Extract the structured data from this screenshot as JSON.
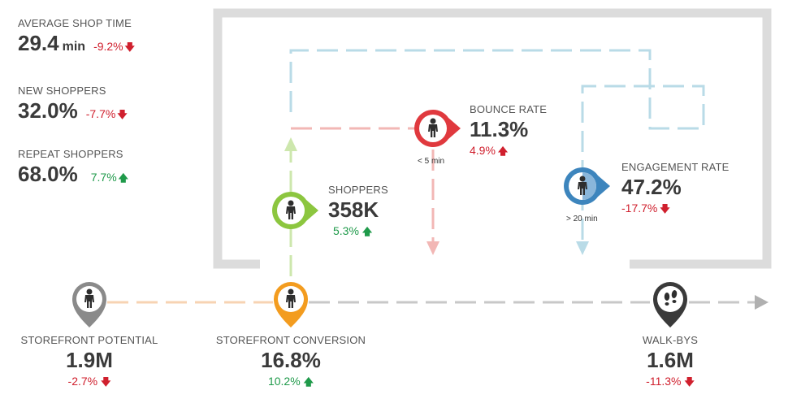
{
  "top_stats": {
    "avg_shop_time": {
      "label": "AVERAGE SHOP TIME",
      "value": "29.4",
      "unit": "min",
      "change": "-9.2%",
      "direction": "down"
    },
    "new_shoppers": {
      "label": "NEW SHOPPERS",
      "value": "32.0%",
      "change": "-7.7%",
      "direction": "down"
    },
    "repeat_shoppers": {
      "label": "REPEAT SHOPPERS",
      "value": "68.0%",
      "change": "7.7%",
      "direction": "up"
    }
  },
  "shoppers": {
    "label": "SHOPPERS",
    "value": "358K",
    "change": "5.3%",
    "direction": "up"
  },
  "bounce_rate": {
    "label": "BOUNCE RATE",
    "value": "11.3%",
    "change": "4.9%",
    "direction": "up",
    "sub_label": "< 5 min"
  },
  "engagement_rate": {
    "label": "ENGAGEMENT RATE",
    "value": "47.2%",
    "change": "-17.7%",
    "direction": "down",
    "sub_label": "> 20 min"
  },
  "storefront_potential": {
    "label": "STOREFRONT POTENTIAL",
    "value": "1.9M",
    "change": "-2.7%",
    "direction": "down"
  },
  "storefront_conversion": {
    "label": "STOREFRONT CONVERSION",
    "value": "16.8%",
    "change": "10.2%",
    "direction": "up"
  },
  "walk_bys": {
    "label": "WALK-BYS",
    "value": "1.6M",
    "change": "-11.3%",
    "direction": "down"
  },
  "arrows": {
    "up": "🡅",
    "down": "🡇"
  },
  "colors": {
    "potential_gray": "#8a8a8a",
    "conversion_orange": "#f39c1f",
    "shoppers_green": "#8cc63f",
    "bounce_red": "#e0393e",
    "engagement_blue": "#3d85bd",
    "walkby_dark": "#3a3a3a",
    "up_green": "#1f9a4a",
    "down_red": "#d0202e",
    "frame_gray": "#dcdcdc"
  },
  "icons": [
    "person-icon",
    "footprints-icon",
    "arrow-up-icon",
    "arrow-down-icon"
  ]
}
